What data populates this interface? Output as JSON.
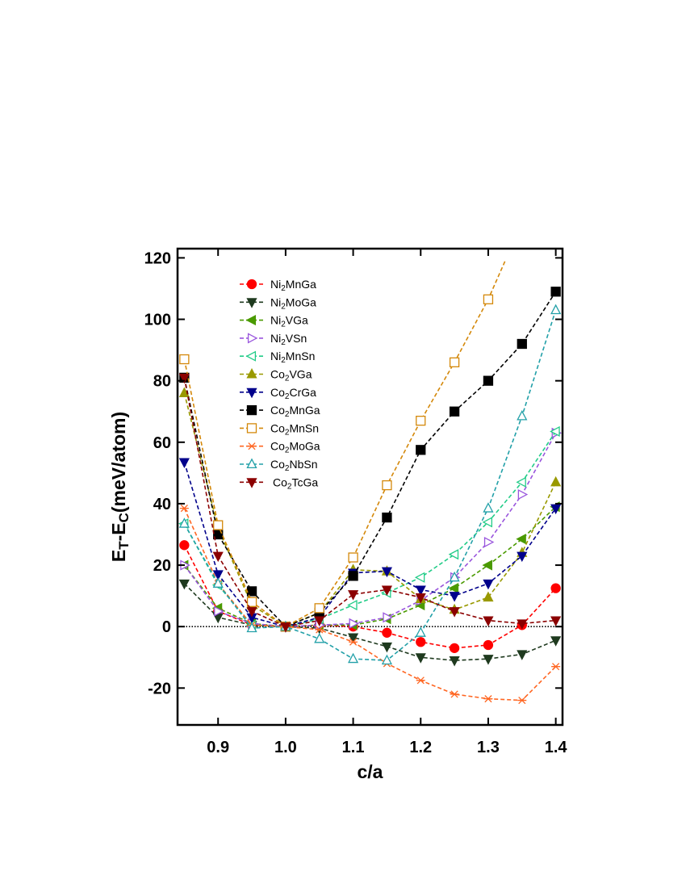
{
  "chart_data": {
    "type": "line",
    "xlabel": "c/a",
    "ylabel": {
      "base_1": "E",
      "sub_1": "T",
      "dash": "-",
      "base_2": "E",
      "sub_2": "C",
      "rest": "(meV/atom)"
    },
    "xlim": [
      0.84,
      1.41
    ],
    "ylim": [
      -32,
      123
    ],
    "x_ticks": [
      0.9,
      1.0,
      1.1,
      1.2,
      1.3,
      1.4
    ],
    "x_tick_labels": [
      "0.9",
      "1.0",
      "1.1",
      "1.2",
      "1.3",
      "1.4"
    ],
    "y_ticks": [
      -20,
      0,
      20,
      40,
      60,
      80,
      100,
      120
    ],
    "y_tick_labels": [
      "-20",
      "0",
      "20",
      "40",
      "60",
      "80",
      "100",
      "120"
    ],
    "reference_line_y": 0,
    "grid": false,
    "legend_position": "upper-left",
    "series": [
      {
        "label": {
          "a": "Ni",
          "sub": "2",
          "b": "MnGa"
        },
        "color": "#ff0000",
        "marker": "circle",
        "fill": true,
        "x": [
          0.85,
          0.9,
          0.95,
          1.0,
          1.05,
          1.1,
          1.15,
          1.2,
          1.25,
          1.3,
          1.35,
          1.4
        ],
        "y": [
          26.5,
          5,
          0.5,
          0,
          0.5,
          0,
          -2,
          -5,
          -7,
          -6,
          0.5,
          12.5
        ]
      },
      {
        "label": {
          "a": "Ni",
          "sub": "2",
          "b": "MoGa"
        },
        "color": "#1f3a1f",
        "marker": "triangle-down",
        "fill": true,
        "x": [
          0.85,
          0.9,
          0.95,
          1.0,
          1.05,
          1.1,
          1.15,
          1.2,
          1.25,
          1.3,
          1.35,
          1.4
        ],
        "y": [
          14,
          3,
          0.5,
          0,
          -0.5,
          -3.5,
          -6.5,
          -10,
          -11,
          -10.5,
          -9,
          -4.5
        ]
      },
      {
        "label": {
          "a": "Ni",
          "sub": "2",
          "b": "VGa"
        },
        "color": "#4a9a00",
        "marker": "triangle-left",
        "fill": true,
        "x": [
          0.85,
          0.9,
          0.95,
          1.0,
          1.05,
          1.1,
          1.15,
          1.2,
          1.25,
          1.3,
          1.35,
          1.4
        ],
        "y": [
          20,
          6,
          1,
          0,
          0.5,
          0.5,
          2.5,
          7,
          12.5,
          20,
          28.5,
          39
        ]
      },
      {
        "label": {
          "a": "Ni",
          "sub": "2",
          "b": "VSn"
        },
        "color": "#9955dd",
        "marker": "triangle-right",
        "fill": false,
        "x": [
          0.85,
          0.9,
          0.95,
          1.0,
          1.05,
          1.1,
          1.15,
          1.2,
          1.25,
          1.3,
          1.35,
          1.4
        ],
        "y": [
          20,
          5,
          1,
          0,
          0.5,
          1,
          3,
          8.5,
          16,
          27.5,
          43,
          63
        ]
      },
      {
        "label": {
          "a": "Ni",
          "sub": "2",
          "b": "MnSn"
        },
        "color": "#22cc88",
        "marker": "triangle-left",
        "fill": false,
        "x": [
          0.85,
          0.9,
          0.95,
          1.0,
          1.05,
          1.1,
          1.15,
          1.2,
          1.25,
          1.3,
          1.35,
          1.4
        ],
        "y": [
          33.5,
          13.5,
          0.5,
          0,
          2.5,
          7,
          11,
          16,
          23.5,
          34,
          47,
          63.5
        ]
      },
      {
        "label": {
          "a": "Co",
          "sub": "2",
          "b": "VGa"
        },
        "color": "#999900",
        "marker": "triangle-up",
        "fill": true,
        "x": [
          0.85,
          0.9,
          0.95,
          1.0,
          1.05,
          1.1,
          1.15,
          1.2,
          1.25,
          1.3,
          1.35,
          1.4
        ],
        "y": [
          76,
          32,
          7,
          0,
          4.5,
          18.5,
          18,
          9,
          5.5,
          9.5,
          24,
          47
        ]
      },
      {
        "label": {
          "a": "Co",
          "sub": "2",
          "b": "CrGa"
        },
        "color": "#00008b",
        "marker": "triangle-down",
        "fill": true,
        "x": [
          0.85,
          0.9,
          0.95,
          1.0,
          1.05,
          1.1,
          1.15,
          1.2,
          1.25,
          1.3,
          1.35,
          1.4
        ],
        "y": [
          53.5,
          17,
          3,
          0,
          3,
          17.5,
          18,
          12,
          10,
          14,
          23,
          38.5
        ]
      },
      {
        "label": {
          "a": "Co",
          "sub": "2",
          "b": "MnGa"
        },
        "color": "#000000",
        "marker": "square",
        "fill": true,
        "x": [
          0.85,
          0.9,
          0.95,
          1.0,
          1.05,
          1.1,
          1.15,
          1.2,
          1.25,
          1.3,
          1.35,
          1.4
        ],
        "y": [
          81,
          30,
          11.5,
          0,
          4.5,
          16.5,
          35.5,
          57.5,
          70,
          80,
          92,
          109
        ]
      },
      {
        "label": {
          "a": "Co",
          "sub": "2",
          "b": "MnSn"
        },
        "color": "#d4880a",
        "marker": "square",
        "fill": false,
        "x": [
          0.85,
          0.9,
          0.95,
          1.0,
          1.05,
          1.1,
          1.15,
          1.2,
          1.25,
          1.3,
          1.325
        ],
        "y": [
          87,
          33,
          8,
          0,
          6,
          22.5,
          46,
          67,
          86,
          106.5,
          119
        ]
      },
      {
        "label": {
          "a": "Co",
          "sub": "2",
          "b": "MoGa"
        },
        "color": "#ff6622",
        "marker": "asterisk",
        "fill": false,
        "x": [
          0.85,
          0.9,
          0.95,
          1.0,
          1.05,
          1.1,
          1.15,
          1.2,
          1.25,
          1.3,
          1.35,
          1.4
        ],
        "y": [
          38.5,
          14,
          0.5,
          0,
          -1,
          -5,
          -12,
          -17.5,
          -22,
          -23.5,
          -24,
          -13
        ]
      },
      {
        "label": {
          "a": "Co",
          "sub": "2",
          "b": "NbSn"
        },
        "color": "#22a0a8",
        "marker": "triangle-up",
        "fill": false,
        "x": [
          0.85,
          0.9,
          0.95,
          1.0,
          1.05,
          1.1,
          1.15,
          1.2,
          1.25,
          1.3,
          1.35,
          1.4
        ],
        "y": [
          33.5,
          14,
          -0.5,
          0,
          -4,
          -10.5,
          -11,
          -2,
          16,
          38.5,
          68.5,
          103
        ]
      },
      {
        "label": {
          "a": "Co",
          "sub": "2",
          "b": "TcGa"
        },
        "color": "#8b0000",
        "marker": "triangle-down",
        "fill": true,
        "x": [
          0.85,
          0.9,
          0.95,
          1.0,
          1.05,
          1.1,
          1.15,
          1.2,
          1.25,
          1.3,
          1.35,
          1.4
        ],
        "y": [
          81,
          23,
          5,
          0,
          2,
          10.5,
          12,
          9.5,
          5,
          2,
          1,
          2
        ]
      }
    ]
  }
}
